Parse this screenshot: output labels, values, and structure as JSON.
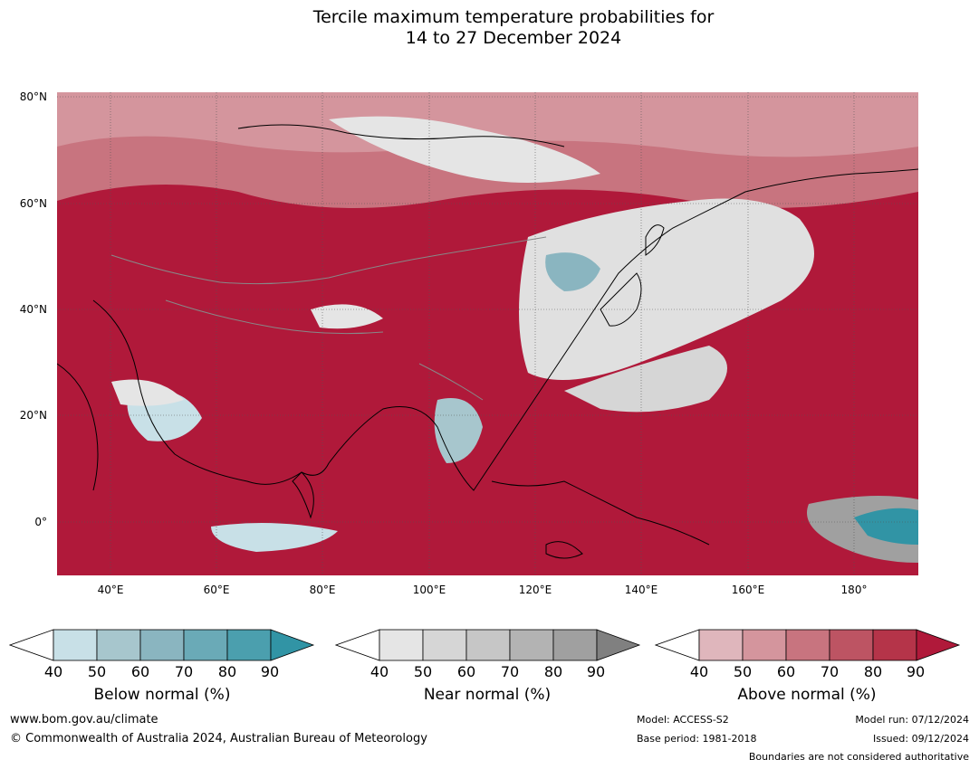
{
  "title": {
    "line1": "Tercile maximum temperature probabilities for",
    "line2": "14 to 27 December 2024"
  },
  "map": {
    "lat_labels": [
      "80°N",
      "60°N",
      "40°N",
      "20°N",
      "0°"
    ],
    "lon_labels": [
      "40°E",
      "60°E",
      "80°E",
      "100°E",
      "120°E",
      "140°E",
      "160°E",
      "180°"
    ],
    "colors": {
      "above": [
        "#dfb6bc",
        "#d4959d",
        "#c8747f",
        "#bd5463",
        "#b53449",
        "#b0193a"
      ],
      "near": [
        "#e5e5e5",
        "#d6d6d6",
        "#c6c6c6",
        "#b3b3b3",
        "#a0a0a0",
        "#808080"
      ],
      "below": [
        "#c8e0e7",
        "#a7c6cd",
        "#8ab5c0",
        "#6aaab7",
        "#4b9fae",
        "#3194a5"
      ]
    }
  },
  "legends": [
    {
      "id": "below",
      "label": "Below normal (%)",
      "ticks": [
        "40",
        "50",
        "60",
        "70",
        "80",
        "90"
      ]
    },
    {
      "id": "near",
      "label": "Near normal (%)",
      "ticks": [
        "40",
        "50",
        "60",
        "70",
        "80",
        "90"
      ]
    },
    {
      "id": "above",
      "label": "Above normal (%)",
      "ticks": [
        "40",
        "50",
        "60",
        "70",
        "80",
        "90"
      ]
    }
  ],
  "footer": {
    "url": "www.bom.gov.au/climate",
    "copyright": "© Commonwealth of Australia 2024, Australian Bureau of Meteorology",
    "model": "Model: ACCESS-S2",
    "base_period": "Base period: 1981-2018",
    "model_run": "Model run: 07/12/2024",
    "issued": "Issued: 09/12/2024",
    "disclaimer": "Boundaries are not considered authoritative"
  }
}
